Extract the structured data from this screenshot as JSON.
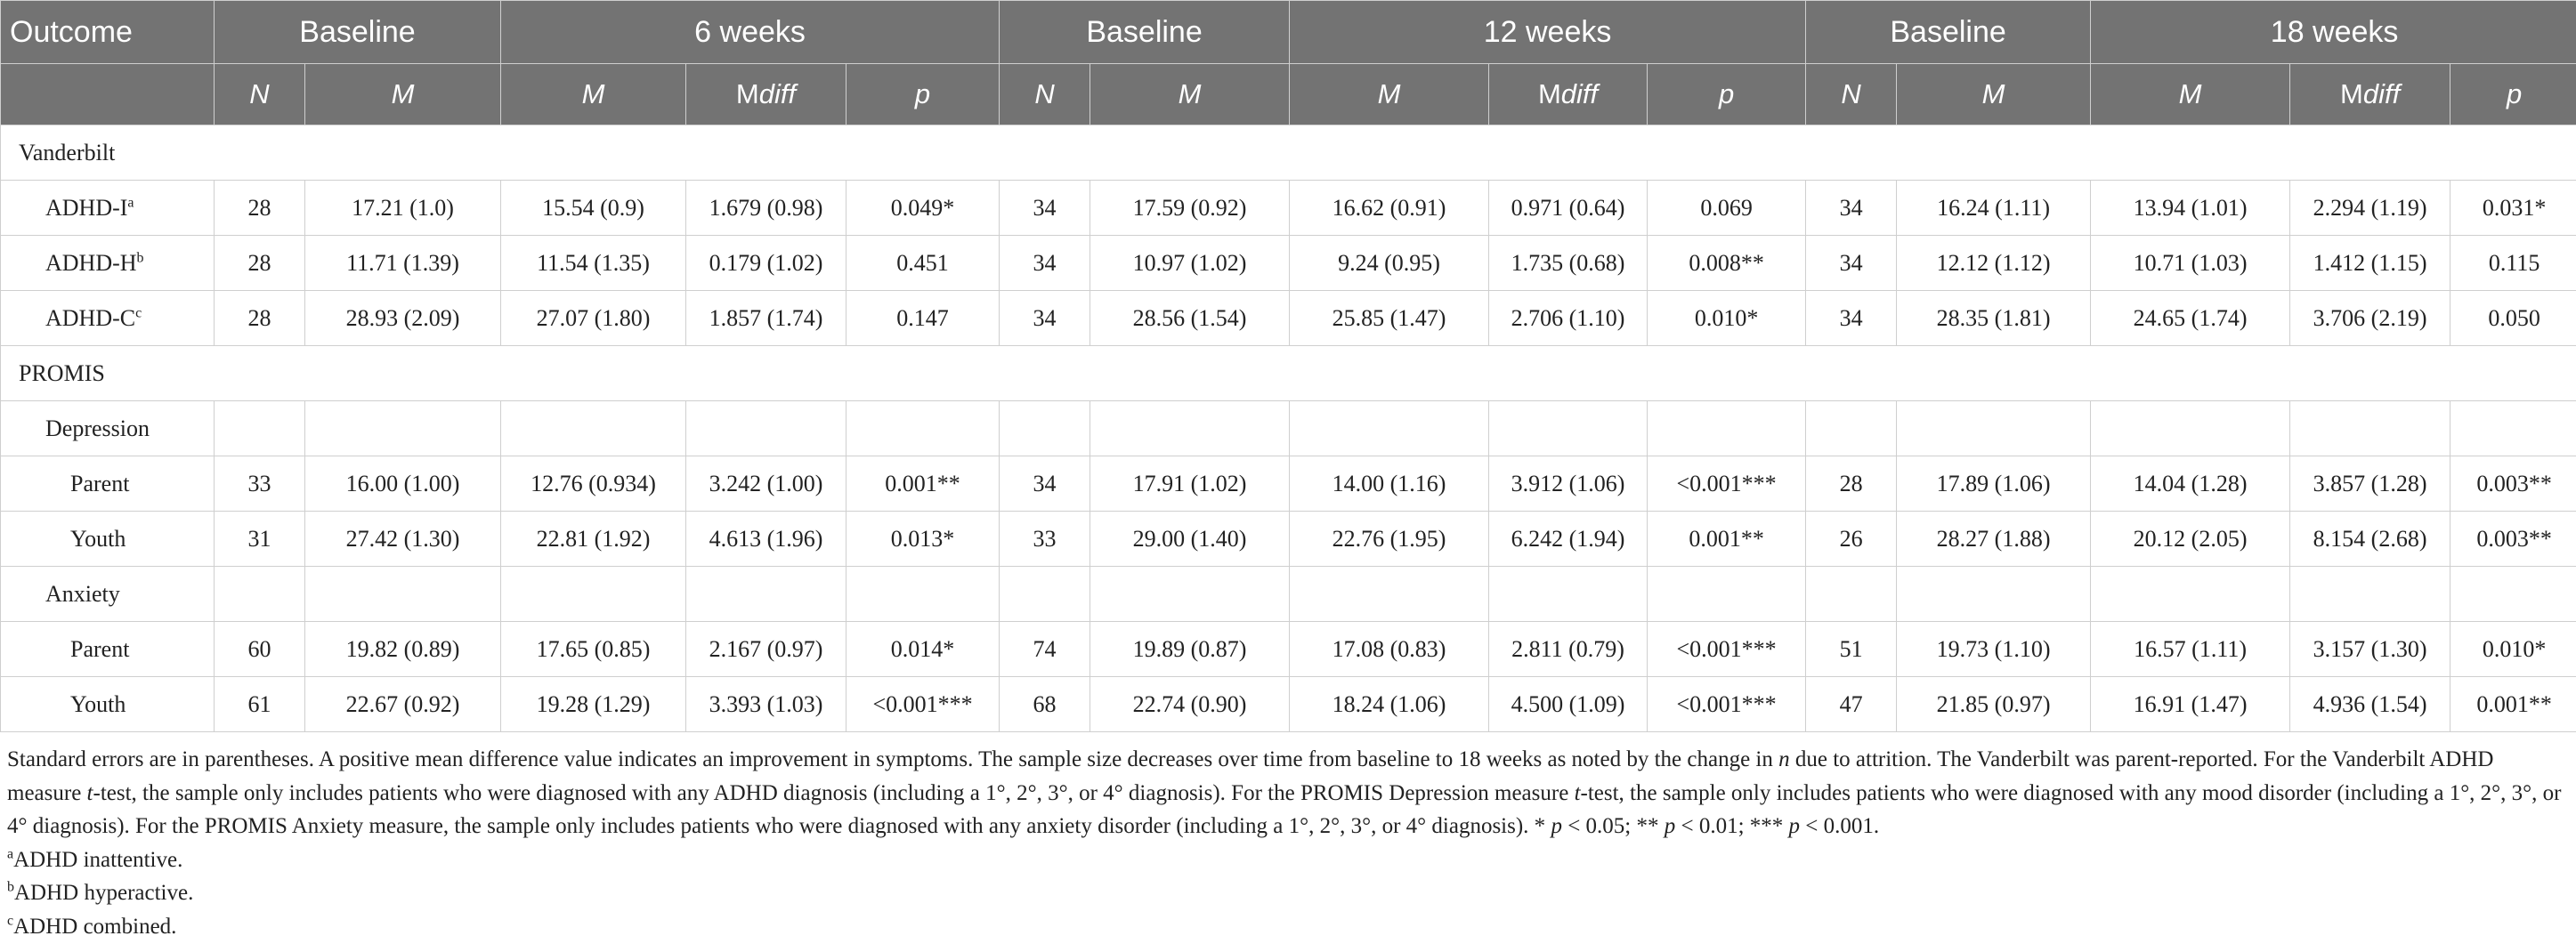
{
  "table": {
    "header": {
      "outcome": "Outcome",
      "groups": [
        "Baseline",
        "6 weeks",
        "Baseline",
        "12 weeks",
        "Baseline",
        "18 weeks"
      ],
      "sub": {
        "n": "N",
        "m": "M",
        "mdiff_prefix": "M",
        "mdiff_suffix": "diff",
        "p": "p"
      }
    },
    "rows": [
      {
        "label": "Vanderbilt",
        "type": "section",
        "cells": []
      },
      {
        "label": "ADHD-I",
        "sup": "a",
        "type": "ind1",
        "cells": [
          "28",
          "17.21 (1.0)",
          "15.54 (0.9)",
          "1.679 (0.98)",
          "0.049*",
          "34",
          "17.59 (0.92)",
          "16.62 (0.91)",
          "0.971 (0.64)",
          "0.069",
          "34",
          "16.24 (1.11)",
          "13.94 (1.01)",
          "2.294 (1.19)",
          "0.031*"
        ]
      },
      {
        "label": "ADHD-H",
        "sup": "b",
        "type": "ind1",
        "cells": [
          "28",
          "11.71 (1.39)",
          "11.54 (1.35)",
          "0.179 (1.02)",
          "0.451",
          "34",
          "10.97 (1.02)",
          "9.24 (0.95)",
          "1.735 (0.68)",
          "0.008**",
          "34",
          "12.12 (1.12)",
          "10.71 (1.03)",
          "1.412 (1.15)",
          "0.115"
        ]
      },
      {
        "label": "ADHD-C",
        "sup": "c",
        "type": "ind1",
        "cells": [
          "28",
          "28.93 (2.09)",
          "27.07 (1.80)",
          "1.857 (1.74)",
          "0.147",
          "34",
          "28.56 (1.54)",
          "25.85 (1.47)",
          "2.706 (1.10)",
          "0.010*",
          "34",
          "28.35 (1.81)",
          "24.65 (1.74)",
          "3.706 (2.19)",
          "0.050"
        ]
      },
      {
        "label": "PROMIS",
        "type": "section",
        "cells": []
      },
      {
        "label": "Depression",
        "type": "ind1",
        "cells": [
          "",
          "",
          "",
          "",
          "",
          "",
          "",
          "",
          "",
          "",
          "",
          "",
          "",
          "",
          ""
        ]
      },
      {
        "label": "Parent",
        "type": "ind2",
        "cells": [
          "33",
          "16.00 (1.00)",
          "12.76 (0.934)",
          "3.242 (1.00)",
          "0.001**",
          "34",
          "17.91 (1.02)",
          "14.00 (1.16)",
          "3.912 (1.06)",
          "<0.001***",
          "28",
          "17.89 (1.06)",
          "14.04 (1.28)",
          "3.857 (1.28)",
          "0.003**"
        ]
      },
      {
        "label": "Youth",
        "type": "ind2",
        "cells": [
          "31",
          "27.42 (1.30)",
          "22.81 (1.92)",
          "4.613 (1.96)",
          "0.013*",
          "33",
          "29.00 (1.40)",
          "22.76 (1.95)",
          "6.242 (1.94)",
          "0.001**",
          "26",
          "28.27 (1.88)",
          "20.12 (2.05)",
          "8.154 (2.68)",
          "0.003**"
        ]
      },
      {
        "label": "Anxiety",
        "type": "ind1",
        "cells": [
          "",
          "",
          "",
          "",
          "",
          "",
          "",
          "",
          "",
          "",
          "",
          "",
          "",
          "",
          ""
        ]
      },
      {
        "label": "Parent",
        "type": "ind2",
        "cells": [
          "60",
          "19.82 (0.89)",
          "17.65 (0.85)",
          "2.167 (0.97)",
          "0.014*",
          "74",
          "19.89 (0.87)",
          "17.08 (0.83)",
          "2.811 (0.79)",
          "<0.001***",
          "51",
          "19.73 (1.10)",
          "16.57 (1.11)",
          "3.157 (1.30)",
          "0.010*"
        ]
      },
      {
        "label": "Youth",
        "type": "ind2",
        "cells": [
          "61",
          "22.67 (0.92)",
          "19.28 (1.29)",
          "3.393 (1.03)",
          "<0.001***",
          "68",
          "22.74 (0.90)",
          "18.24 (1.06)",
          "4.500 (1.09)",
          "<0.001***",
          "47",
          "21.85 (0.97)",
          "16.91 (1.47)",
          "4.936 (1.54)",
          "0.001**"
        ]
      }
    ]
  },
  "notes": {
    "main": {
      "t1": "Standard errors are in parentheses. A positive mean difference value indicates an improvement in symptoms. The sample size decreases over time from baseline to 18 weeks as noted by the change in ",
      "n": "n",
      "t2": " due to attrition. The Vanderbilt was parent-reported. For the Vanderbilt ADHD measure ",
      "t": "t",
      "t3": "-test, the sample only includes patients who were diagnosed with any ADHD diagnosis (including a 1°, 2°, 3°, or 4° diagnosis). For the PROMIS Depression measure ",
      "t4": "-test, the sample only includes patients who were diagnosed with any mood disorder (including a 1°, 2°, 3°, or 4° diagnosis). For the PROMIS Anxiety measure, the sample only includes patients who were diagnosed with any anxiety disorder (including a 1°, 2°, 3°, or 4° diagnosis). * ",
      "p": "p",
      "t5": " < 0.05; ** ",
      "t6": " < 0.01; *** ",
      "t7": " < 0.001."
    },
    "footnotes": [
      {
        "sup": "a",
        "text": "ADHD inattentive."
      },
      {
        "sup": "b",
        "text": "ADHD hyperactive."
      },
      {
        "sup": "c",
        "text": "ADHD combined."
      }
    ]
  }
}
